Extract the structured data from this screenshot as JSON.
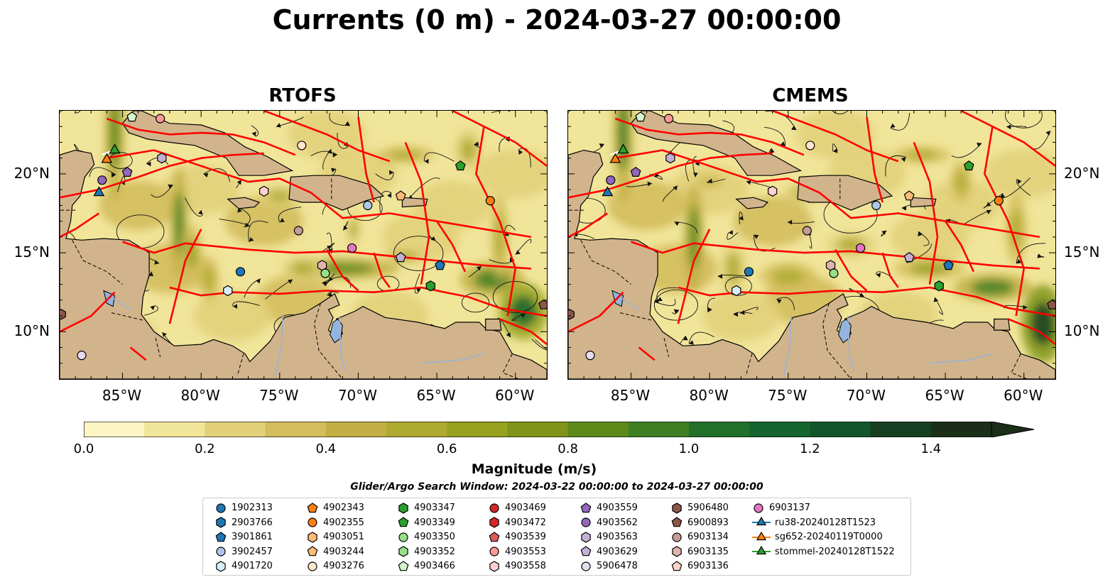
{
  "title": "Currents (0 m) - 2024-03-27 00:00:00",
  "colorbar": {
    "label": "Magnitude (m/s)",
    "ticks": [
      "0.0",
      "0.2",
      "0.4",
      "0.6",
      "0.8",
      "1.0",
      "1.2",
      "1.4"
    ],
    "tick_values": [
      0.0,
      0.2,
      0.4,
      0.6,
      0.8,
      1.0,
      1.2,
      1.4
    ],
    "range": [
      0,
      1.5
    ],
    "extend": "max",
    "colors": [
      "#fdf6c4",
      "#f1e59a",
      "#e2d07a",
      "#d3bd5c",
      "#c2b044",
      "#aeaa30",
      "#97a21f",
      "#7f9418",
      "#5e8a1b",
      "#3f7f23",
      "#226f2a",
      "#16652e",
      "#13552a",
      "#163f22",
      "#1a2e18"
    ]
  },
  "search_window": "Glider/Argo Search Window: 2024-03-22 00:00:00 to 2024-03-27 00:00:00",
  "panels": [
    {
      "title": "RTOFS"
    },
    {
      "title": "CMEMS"
    }
  ],
  "axes": {
    "x_ticks": [
      "85°W",
      "80°W",
      "75°W",
      "70°W",
      "65°W",
      "60°W"
    ],
    "x_values": [
      -85,
      -80,
      -75,
      -70,
      -65,
      -60
    ],
    "y_ticks": [
      "10°N",
      "15°N",
      "20°N"
    ],
    "y_values": [
      10,
      15,
      20
    ],
    "lon_range": [
      -89,
      -58
    ],
    "lat_range": [
      7,
      24
    ]
  },
  "legend": [
    {
      "label": "1902313",
      "marker": "circle",
      "color": "#1f77b4"
    },
    {
      "label": "2903766",
      "marker": "hexagon",
      "color": "#1f77b4"
    },
    {
      "label": "3901861",
      "marker": "pentagon",
      "color": "#1f77b4"
    },
    {
      "label": "3902457",
      "marker": "circle",
      "color": "#aec7e8"
    },
    {
      "label": "4901720",
      "marker": "hexagon",
      "color": "#d8ecf8"
    },
    {
      "label": "4902343",
      "marker": "pentagon",
      "color": "#ff7f0e"
    },
    {
      "label": "4902355",
      "marker": "circle",
      "color": "#ff7f0e"
    },
    {
      "label": "4903051",
      "marker": "hexagon",
      "color": "#ffbb78"
    },
    {
      "label": "4903244",
      "marker": "pentagon",
      "color": "#ffbb78"
    },
    {
      "label": "4903276",
      "marker": "circle",
      "color": "#ffe6cc"
    },
    {
      "label": "4903347",
      "marker": "hexagon",
      "color": "#2ca02c"
    },
    {
      "label": "4903349",
      "marker": "pentagon",
      "color": "#2ca02c"
    },
    {
      "label": "4903350",
      "marker": "circle",
      "color": "#98df8a"
    },
    {
      "label": "4903352",
      "marker": "hexagon",
      "color": "#98df8a"
    },
    {
      "label": "4903466",
      "marker": "pentagon",
      "color": "#d5f5cc"
    },
    {
      "label": "4903469",
      "marker": "circle",
      "color": "#d62728"
    },
    {
      "label": "4903472",
      "marker": "hexagon",
      "color": "#d62728"
    },
    {
      "label": "4903539",
      "marker": "pentagon",
      "color": "#e05a5a"
    },
    {
      "label": "4903553",
      "marker": "circle",
      "color": "#ff9896"
    },
    {
      "label": "4903558",
      "marker": "hexagon",
      "color": "#ffd0cf"
    },
    {
      "label": "4903559",
      "marker": "pentagon",
      "color": "#9467bd"
    },
    {
      "label": "4903562",
      "marker": "circle",
      "color": "#9467bd"
    },
    {
      "label": "4903563",
      "marker": "hexagon",
      "color": "#c5b0d5"
    },
    {
      "label": "4903629",
      "marker": "pentagon",
      "color": "#c5b0d5"
    },
    {
      "label": "5906478",
      "marker": "circle",
      "color": "#e6dcf0"
    },
    {
      "label": "5906480",
      "marker": "hexagon",
      "color": "#8c564b"
    },
    {
      "label": "6900893",
      "marker": "pentagon",
      "color": "#8c564b"
    },
    {
      "label": "6903134",
      "marker": "circle",
      "color": "#c49c94"
    },
    {
      "label": "6903135",
      "marker": "hexagon",
      "color": "#e0b4ac"
    },
    {
      "label": "6903136",
      "marker": "pentagon",
      "color": "#f7d6c8"
    },
    {
      "label": "6903137",
      "marker": "circle",
      "color": "#e377c2"
    },
    {
      "label": "ru38-20240128T1523",
      "marker": "triangle-line",
      "color": "#1f77b4"
    },
    {
      "label": "sg652-20240119T0000",
      "marker": "triangle-line",
      "color": "#ff7f0e"
    },
    {
      "label": "stommel-20240128T1522",
      "marker": "triangle-line",
      "color": "#2ca02c"
    }
  ],
  "floats": [
    {
      "id": "6903137",
      "lon": -70.4,
      "lat": 15.3
    },
    {
      "id": "4903553",
      "lon": -82.6,
      "lat": 23.5
    },
    {
      "id": "4903466",
      "lon": -84.4,
      "lat": 23.6
    },
    {
      "id": "4903562",
      "lon": -86.3,
      "lat": 19.6
    },
    {
      "id": "4903559",
      "lon": -84.7,
      "lat": 20.1
    },
    {
      "id": "4903563",
      "lon": -82.5,
      "lat": 21.0
    },
    {
      "id": "4903276",
      "lon": -73.6,
      "lat": 21.8
    },
    {
      "id": "4903349",
      "lon": -63.5,
      "lat": 20.5
    },
    {
      "id": "4903558",
      "lon": -76.0,
      "lat": 18.9
    },
    {
      "id": "3902457",
      "lon": -69.4,
      "lat": 18.0
    },
    {
      "id": "4903244",
      "lon": -67.3,
      "lat": 18.6
    },
    {
      "id": "4902355",
      "lon": -61.6,
      "lat": 18.3
    },
    {
      "id": "6903134",
      "lon": -73.8,
      "lat": 16.4
    },
    {
      "id": "4903629",
      "lon": -67.3,
      "lat": 14.7
    },
    {
      "id": "3901861",
      "lon": -64.8,
      "lat": 14.2
    },
    {
      "id": "6903135",
      "lon": -72.3,
      "lat": 14.2
    },
    {
      "id": "4903350",
      "lon": -72.1,
      "lat": 13.7
    },
    {
      "id": "1902313",
      "lon": -77.5,
      "lat": 13.8
    },
    {
      "id": "4901720",
      "lon": -78.3,
      "lat": 12.6
    },
    {
      "id": "4903347",
      "lon": -65.4,
      "lat": 12.9
    },
    {
      "id": "5906480",
      "lon": -88.9,
      "lat": 11.1
    },
    {
      "id": "5906478",
      "lon": -87.6,
      "lat": 8.5
    },
    {
      "id": "6900893",
      "lon": -58.2,
      "lat": 11.7
    }
  ],
  "gliders": [
    {
      "id": "ru38-20240128T1523",
      "lon": -86.5,
      "lat": 18.8
    },
    {
      "id": "sg652-20240119T0000",
      "lon": -86.0,
      "lat": 20.9
    },
    {
      "id": "stommel-20240128T1522",
      "lon": -85.5,
      "lat": 21.5
    }
  ]
}
